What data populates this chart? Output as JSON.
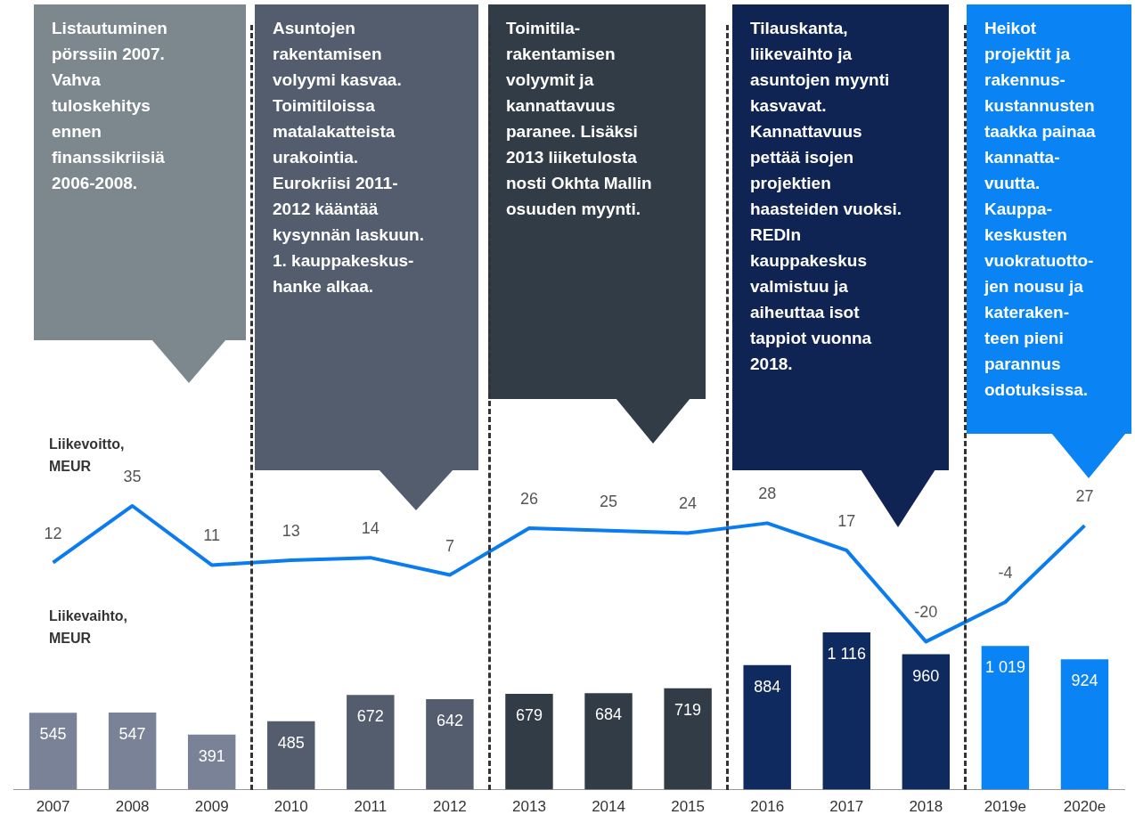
{
  "chart_data": {
    "type": "bar",
    "categories": [
      "2007",
      "2008",
      "2009",
      "2010",
      "2011",
      "2012",
      "2013",
      "2014",
      "2015",
      "2016",
      "2017",
      "2018",
      "2019e",
      "2020e"
    ],
    "series": [
      {
        "colors": [
          "#7a8298",
          "#7a8298",
          "#7a8298",
          "#535d6e",
          "#535d6e",
          "#535d6e",
          "#323c47",
          "#323c47",
          "#323c47",
          "#0f2a5e",
          "#0f2a5e",
          "#0f2a5e",
          "#0a84f5",
          "#0a84f5"
        ],
        "values": [
          545,
          547,
          391,
          485,
          672,
          642,
          679,
          684,
          719,
          884,
          1116,
          960,
          1019,
          924
        ],
        "value_labels": [
          "545",
          "547",
          "391",
          "485",
          "672",
          "642",
          "679",
          "684",
          "719",
          "884",
          "1 116",
          "960",
          "1 019",
          "924"
        ]
      },
      {
        "name": "Liikevoitto, MEUR",
        "type": "line",
        "axis": "y2",
        "color": "#0a7cf0",
        "values": [
          12,
          35,
          11,
          13,
          14,
          7,
          26,
          25,
          24,
          28,
          17,
          -20,
          -4,
          27
        ],
        "value_labels": [
          "12",
          "35",
          "11",
          "13",
          "14",
          "7",
          "26",
          "25",
          "24",
          "28",
          "17",
          "-20",
          "-4",
          "27"
        ]
      }
    ],
    "ylabel": "Liikevaihto, MEUR",
    "ylim": [
      0,
      5600
    ],
    "y2lim": [
      -80,
      240
    ],
    "tick_labels": "x",
    "grid": false,
    "legend": false,
    "marker": "none",
    "annotations": [
      "Listautuminen\npörssiin 2007.\nVahva\ntuloskehitys\nennen\nfinanssikriisiä\n2006-2008.",
      "Asuntojen\nrakentamisen\nvolyymi kasvaa.\nToimitiloissa\nmatalakatteista\nurakointia.\nEurokriisi 2011-\n2012 kääntää\nkysynnän laskuun.\n1. kauppakeskus-\nhanke alkaa.",
      "Toimitila-\nrakentamisen\nvolyymit ja\nkannattavuus\nparanee. Lisäksi\n2013 liiketulosta\nnosti Okhta Mallin\nosuuden myynti.",
      "Tilauskanta,\nliikevaihto ja\nasuntojen myynti\nkasvavat.\nKannattavuus\npettää isojen\nprojektien\nhaasteiden vuoksi.\nREDIn\nkauppakeskus\nvalmistuu ja\naiheuttaa isot\ntappiot vuonna\n2018.",
      "Heikot\nprojektit ja\nrakennus-\nkustannusten\ntaakka painaa\nkannatta-\nvuutta.\nKauppa-\nkeskusten\nvuokratuotto-\njen nousu ja\nkateraken-\nteen pieni\nparannus\nodotuksissa."
    ]
  }
}
